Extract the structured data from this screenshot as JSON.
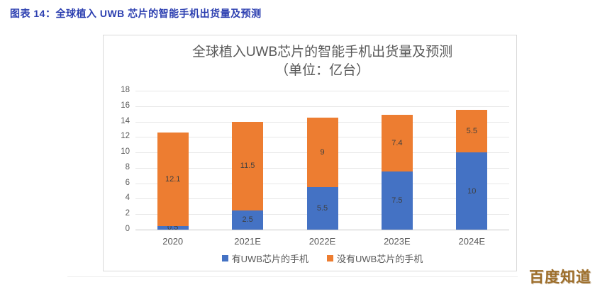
{
  "page": {
    "header": "图表 14：全球植入 UWB 芯片的智能手机出货量及预测",
    "watermark": "百度知道"
  },
  "colors": {
    "header_text": "#2c3fb0",
    "series_with_uwb": "#4472c4",
    "series_without_uwb": "#ed7d31",
    "gridline": "#e7e7e7",
    "axis_text": "#595959",
    "bar_label_text": "#3f3f3f",
    "panel_border": "#d9d9d9",
    "watermark_text": "#9d6e2a"
  },
  "chart_data": {
    "type": "bar",
    "stacked": true,
    "title": "全球植入UWB芯片的智能手机出货量及预测",
    "subtitle": "（单位：亿台）",
    "categories": [
      "2020",
      "2021E",
      "2022E",
      "2023E",
      "2024E"
    ],
    "series": [
      {
        "name": "有UWB芯片的手机",
        "color": "#4472c4",
        "values": [
          0.5,
          2.5,
          5.5,
          7.5,
          10
        ]
      },
      {
        "name": "没有UWB芯片的手机",
        "color": "#ed7d31",
        "values": [
          12.1,
          11.5,
          9,
          7.4,
          5.5
        ]
      }
    ],
    "ylim": [
      0,
      18
    ],
    "ytick_step": 2,
    "grid": true,
    "legend_position": "bottom"
  }
}
